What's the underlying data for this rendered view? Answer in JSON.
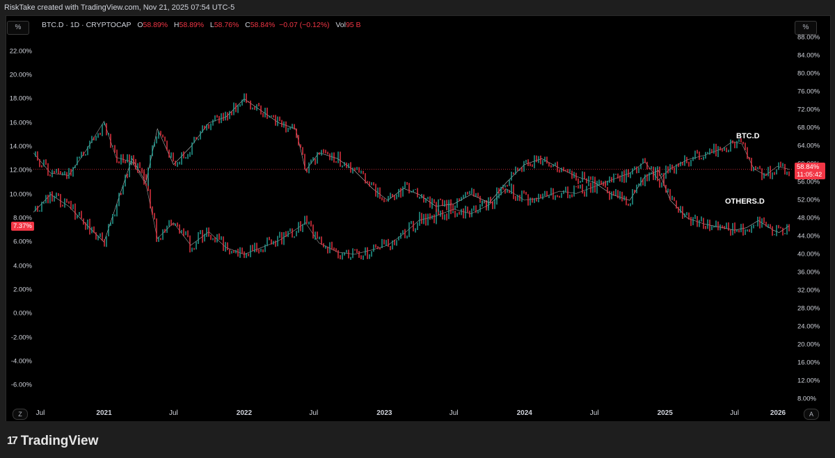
{
  "header": {
    "title": "RiskTake created with TradingView.com, Nov 21, 2025 07:54 UTC-5"
  },
  "buttons": {
    "left_scale": "%",
    "right_scale": "%",
    "z_button": "Z",
    "a_button": "A"
  },
  "legend": {
    "symbol": "BTC.D · 1D · CRYPTOCAP",
    "o_label": "O",
    "o_value": "58.89%",
    "h_label": "H",
    "h_value": "58.89%",
    "l_label": "L",
    "l_value": "58.76%",
    "c_label": "C",
    "c_value": "58.84%",
    "change": "−0.07 (−0.12%)",
    "vol_label": "Vol",
    "vol_value": "95 B"
  },
  "badges": {
    "left_value": "7.37%",
    "right_value": "58.84%",
    "right_time": "11:05:42"
  },
  "series_labels": {
    "btc": "BTC.D",
    "others": "OTHERS.D"
  },
  "footer": {
    "logo_text": "TradingView",
    "logo_mark": "17"
  },
  "colors": {
    "up": "#26a69a",
    "down": "#f23645",
    "others_line": "#e0e0e0",
    "background": "#000000"
  },
  "chart_data": {
    "type": "line",
    "x_tick_labels": [
      "Jul",
      "2021",
      "Jul",
      "2022",
      "Jul",
      "2023",
      "Jul",
      "2024",
      "Jul",
      "2025",
      "Jul",
      "2026"
    ],
    "x_tick_dates": [
      "2020-07-01",
      "2021-01-01",
      "2021-07-01",
      "2022-01-01",
      "2022-07-01",
      "2023-01-01",
      "2023-07-01",
      "2024-01-01",
      "2024-07-01",
      "2025-01-01",
      "2025-07-01",
      "2026-01-01"
    ],
    "x_range": [
      "2020-07-01",
      "2025-12-01"
    ],
    "left_axis": {
      "ticks": [
        "22.00%",
        "20.00%",
        "18.00%",
        "16.00%",
        "14.00%",
        "12.00%",
        "10.00%",
        "8.00%",
        "6.00%",
        "4.00%",
        "2.00%",
        "0.00%",
        "-2.00%",
        "-4.00%",
        "-6.00%"
      ],
      "range": [
        -7.5,
        23.5
      ]
    },
    "right_axis": {
      "ticks": [
        "88.00%",
        "84.00%",
        "80.00%",
        "76.00%",
        "72.00%",
        "68.00%",
        "64.00%",
        "60.00%",
        "56.00%",
        "52.00%",
        "48.00%",
        "44.00%",
        "40.00%",
        "36.00%",
        "32.00%",
        "28.00%",
        "24.00%",
        "20.00%",
        "16.00%",
        "12.00%",
        "8.00%"
      ],
      "range": [
        7,
        89
      ]
    },
    "reference_line_left": 12.1,
    "series": [
      {
        "name": "BTC.D",
        "axis": "right",
        "style": "candles",
        "x": [
          "2020-07-01",
          "2020-08-15",
          "2020-10-01",
          "2020-11-15",
          "2021-01-01",
          "2021-02-01",
          "2021-03-15",
          "2021-04-20",
          "2021-05-20",
          "2021-07-01",
          "2021-08-15",
          "2021-10-01",
          "2021-11-15",
          "2022-01-01",
          "2022-02-15",
          "2022-04-01",
          "2022-05-15",
          "2022-06-10",
          "2022-07-15",
          "2022-09-01",
          "2022-10-15",
          "2022-12-01",
          "2023-01-10",
          "2023-02-20",
          "2023-04-01",
          "2023-05-15",
          "2023-07-01",
          "2023-08-15",
          "2023-10-01",
          "2023-11-15",
          "2024-01-01",
          "2024-02-15",
          "2024-04-01",
          "2024-05-15",
          "2024-07-01",
          "2024-08-15",
          "2024-10-01",
          "2024-11-10",
          "2024-12-15",
          "2025-01-15",
          "2025-03-01",
          "2025-04-15",
          "2025-06-01",
          "2025-06-25",
          "2025-07-20",
          "2025-08-20",
          "2025-09-20",
          "2025-10-20",
          "2025-11-21"
        ],
        "values": [
          62.5,
          58.0,
          57.5,
          63.0,
          69.5,
          61.5,
          60.5,
          55.5,
          43.5,
          47.0,
          42.0,
          45.0,
          41.5,
          40.0,
          41.5,
          43.0,
          45.5,
          47.0,
          42.5,
          40.5,
          40.0,
          41.0,
          42.0,
          44.5,
          47.5,
          48.5,
          50.0,
          49.0,
          51.0,
          54.5,
          52.0,
          52.5,
          54.0,
          53.5,
          55.0,
          56.5,
          58.0,
          60.5,
          56.5,
          59.0,
          61.0,
          62.0,
          63.5,
          65.0,
          64.5,
          59.0,
          57.5,
          59.5,
          58.84
        ]
      },
      {
        "name": "OTHERS.D",
        "axis": "left",
        "style": "candles",
        "x": [
          "2020-07-01",
          "2020-08-15",
          "2020-10-01",
          "2020-11-15",
          "2021-01-01",
          "2021-02-01",
          "2021-03-15",
          "2021-04-20",
          "2021-05-20",
          "2021-07-01",
          "2021-08-15",
          "2021-10-01",
          "2021-11-15",
          "2022-01-01",
          "2022-02-15",
          "2022-04-01",
          "2022-05-15",
          "2022-06-10",
          "2022-07-15",
          "2022-09-01",
          "2022-10-15",
          "2022-12-01",
          "2023-01-10",
          "2023-02-20",
          "2023-04-01",
          "2023-05-15",
          "2023-07-01",
          "2023-08-15",
          "2023-10-01",
          "2023-11-15",
          "2024-01-01",
          "2024-02-15",
          "2024-04-01",
          "2024-05-15",
          "2024-07-01",
          "2024-08-15",
          "2024-10-01",
          "2024-11-10",
          "2024-12-15",
          "2025-01-15",
          "2025-03-01",
          "2025-04-15",
          "2025-06-01",
          "2025-07-01",
          "2025-08-01",
          "2025-09-01",
          "2025-10-10",
          "2025-10-25",
          "2025-11-21"
        ],
        "values": [
          8.5,
          10.0,
          9.0,
          7.5,
          6.0,
          9.0,
          13.0,
          11.0,
          15.5,
          12.5,
          14.0,
          16.0,
          16.5,
          18.0,
          17.0,
          16.0,
          15.5,
          12.0,
          13.5,
          13.0,
          12.0,
          10.5,
          9.5,
          10.5,
          10.0,
          9.0,
          9.2,
          10.0,
          9.3,
          11.0,
          12.5,
          13.0,
          12.2,
          11.5,
          11.0,
          10.0,
          9.5,
          11.5,
          12.0,
          9.5,
          8.0,
          7.5,
          7.2,
          7.0,
          7.2,
          7.8,
          7.0,
          6.8,
          7.37
        ]
      }
    ]
  }
}
